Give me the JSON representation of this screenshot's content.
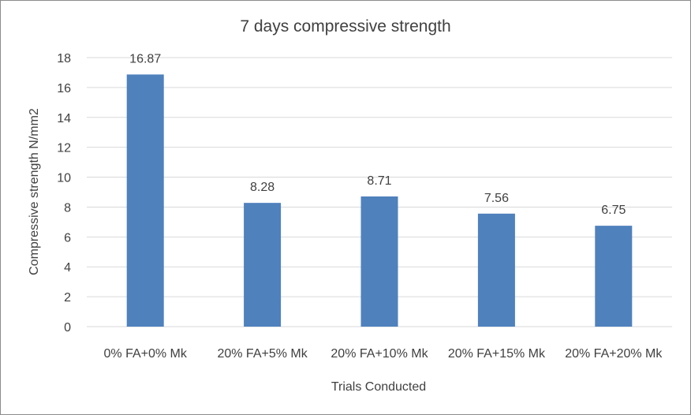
{
  "chart_data": {
    "type": "bar",
    "title": "7 days compressive strength",
    "xlabel": "Trials Conducted",
    "ylabel": "Compressive strength N/mm2",
    "categories": [
      "0% FA+0% Mk",
      "20% FA+5% Mk",
      "20% FA+10% Mk",
      "20% FA+15% Mk",
      "20% FA+20% Mk"
    ],
    "values": [
      16.87,
      8.28,
      8.71,
      7.56,
      6.75
    ],
    "data_labels": [
      "16.87",
      "8.28",
      "8.71",
      "7.56",
      "6.75"
    ],
    "ylim": [
      0,
      18
    ],
    "yticks": [
      "0",
      "2",
      "4",
      "6",
      "8",
      "10",
      "12",
      "14",
      "16",
      "18"
    ],
    "grid": true,
    "legend": "none",
    "bar_color": "#4f81bd"
  }
}
